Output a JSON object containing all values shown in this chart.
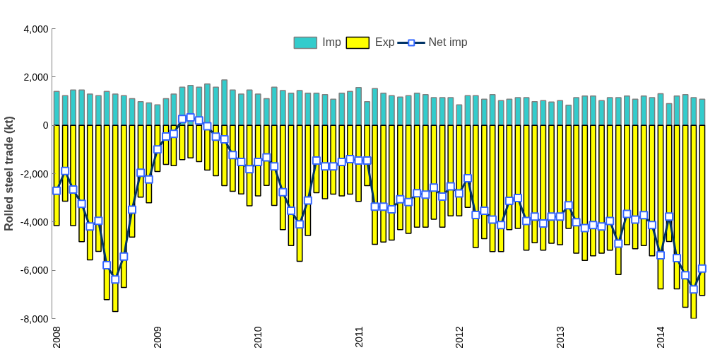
{
  "chart_data": {
    "type": "bar",
    "ylabel": "Rolled steel trade (kt)",
    "x": [
      "2008-01",
      "2008-02",
      "2008-03",
      "2008-04",
      "2008-05",
      "2008-06",
      "2008-07",
      "2008-08",
      "2008-09",
      "2008-10",
      "2008-11",
      "2008-12",
      "2009-01",
      "2009-02",
      "2009-03",
      "2009-04",
      "2009-05",
      "2009-06",
      "2009-07",
      "2009-08",
      "2009-09",
      "2009-10",
      "2009-11",
      "2009-12",
      "2010-01",
      "2010-02",
      "2010-03",
      "2010-04",
      "2010-05",
      "2010-06",
      "2010-07",
      "2010-08",
      "2010-09",
      "2010-10",
      "2010-11",
      "2010-12",
      "2011-01",
      "2011-02",
      "2011-03",
      "2011-04",
      "2011-05",
      "2011-06",
      "2011-07",
      "2011-08",
      "2011-09",
      "2011-10",
      "2011-11",
      "2011-12",
      "2012-01",
      "2012-02",
      "2012-03",
      "2012-04",
      "2012-05",
      "2012-06",
      "2012-07",
      "2012-08",
      "2012-09",
      "2012-10",
      "2012-11",
      "2012-12",
      "2013-01",
      "2013-02",
      "2013-03",
      "2013-04",
      "2013-05",
      "2013-06",
      "2013-07",
      "2013-08",
      "2013-09",
      "2013-10",
      "2013-11",
      "2013-12",
      "2014-01",
      "2014-02",
      "2014-03",
      "2014-04",
      "2014-05",
      "2014-06"
    ],
    "series": [
      {
        "name": "Imp",
        "color": "#33cccc",
        "values": [
          1400,
          1230,
          1460,
          1460,
          1290,
          1230,
          1400,
          1290,
          1230,
          1100,
          980,
          930,
          850,
          1100,
          1290,
          1580,
          1650,
          1580,
          1710,
          1580,
          1880,
          1460,
          1290,
          1460,
          1290,
          1100,
          1580,
          1440,
          1330,
          1440,
          1330,
          1330,
          1270,
          1080,
          1330,
          1400,
          1560,
          980,
          1520,
          1330,
          1230,
          1170,
          1230,
          1330,
          1270,
          1150,
          1150,
          1150,
          850,
          1230,
          1230,
          1080,
          1270,
          1020,
          1080,
          1150,
          1150,
          980,
          1020,
          960,
          1020,
          830,
          1150,
          1210,
          1210,
          1020,
          1150,
          1150,
          1210,
          1080,
          1210,
          1150,
          1310,
          900,
          1210,
          1270,
          1150,
          1080
        ]
      },
      {
        "name": "Exp",
        "color": "#ffff00",
        "values": [
          -4150,
          -3140,
          -4150,
          -4820,
          -5570,
          -5220,
          -7220,
          -7710,
          -6710,
          -4630,
          -2970,
          -3210,
          -1910,
          -1620,
          -1670,
          -1420,
          -1350,
          -1500,
          -1850,
          -2090,
          -2500,
          -2730,
          -2840,
          -3330,
          -2920,
          -2490,
          -3320,
          -4320,
          -4980,
          -5630,
          -4560,
          -2790,
          -3040,
          -2850,
          -2920,
          -2850,
          -3150,
          -2500,
          -4930,
          -4830,
          -4750,
          -4320,
          -4470,
          -4220,
          -4220,
          -3890,
          -4220,
          -3750,
          -3750,
          -3400,
          -5060,
          -4690,
          -5230,
          -5230,
          -4320,
          -4270,
          -5170,
          -4860,
          -5170,
          -4880,
          -4940,
          -4270,
          -5290,
          -5590,
          -5400,
          -5290,
          -5170,
          -6180,
          -4940,
          -5110,
          -4980,
          -5400,
          -6770,
          -4810,
          -6770,
          -7530,
          -8000,
          -7040
        ]
      },
      {
        "name": "Net imp",
        "type": "line",
        "color": "#003366",
        "values": [
          -2710,
          -1890,
          -2660,
          -3250,
          -4190,
          -3950,
          -5790,
          -6380,
          -5430,
          -3490,
          -1960,
          -2240,
          -1000,
          -460,
          -350,
          260,
          330,
          200,
          -40,
          -470,
          -580,
          -1230,
          -1520,
          -1820,
          -1520,
          -1330,
          -1700,
          -2770,
          -3540,
          -4100,
          -3110,
          -1460,
          -1700,
          -1700,
          -1520,
          -1400,
          -1460,
          -1460,
          -3370,
          -3370,
          -3480,
          -3060,
          -3180,
          -2810,
          -2870,
          -2580,
          -2950,
          -2530,
          -2820,
          -2190,
          -3710,
          -3540,
          -3900,
          -4130,
          -3130,
          -3010,
          -3960,
          -3780,
          -4060,
          -3780,
          -3780,
          -3310,
          -4010,
          -4250,
          -4130,
          -4190,
          -3960,
          -4900,
          -3670,
          -3900,
          -3720,
          -4130,
          -5380,
          -3780,
          -5500,
          -6210,
          -6790,
          -5930
        ]
      }
    ],
    "marker": "square",
    "stacked": true,
    "xlim": [
      "2007-12-15",
      "2014-06-18"
    ],
    "xticks": [
      {
        "value": "2008-01",
        "label": "2008"
      },
      {
        "value": "2009-01",
        "label": "2009"
      },
      {
        "value": "2010-01",
        "label": "2010"
      },
      {
        "value": "2011-01",
        "label": "2011"
      },
      {
        "value": "2012-01",
        "label": "2012"
      },
      {
        "value": "2013-01",
        "label": "2013"
      },
      {
        "value": "2014-01",
        "label": "2014"
      }
    ],
    "ylim": [
      -8000,
      4000
    ],
    "yticks": [
      {
        "value": -8000,
        "label": "-8,000"
      },
      {
        "value": -6000,
        "label": "-6,000"
      },
      {
        "value": -4000,
        "label": "-4,000"
      },
      {
        "value": -2000,
        "label": "-2,000"
      },
      {
        "value": 0,
        "label": "0"
      },
      {
        "value": 2000,
        "label": "2,000"
      },
      {
        "value": 4000,
        "label": "4,000"
      }
    ],
    "grid": false,
    "legend": "top"
  }
}
